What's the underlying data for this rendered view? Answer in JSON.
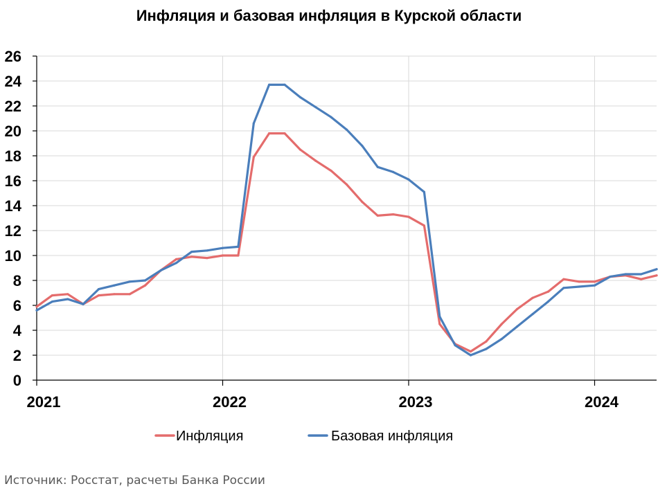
{
  "chart_data": {
    "type": "line",
    "title": "Инфляция и базовая инфляция в Курской области",
    "xlabel": "",
    "ylabel": "",
    "ylim": [
      0,
      26
    ],
    "yticks": [
      0,
      2,
      4,
      6,
      8,
      10,
      12,
      14,
      16,
      18,
      20,
      22,
      24,
      26
    ],
    "x_tick_labels": [
      "2021",
      "2022",
      "2023",
      "2024"
    ],
    "x_start": "2021-01",
    "x_end": "2024-05",
    "grid": true,
    "legend_position": "bottom",
    "x": [
      "2021-01",
      "2021-02",
      "2021-03",
      "2021-04",
      "2021-05",
      "2021-06",
      "2021-07",
      "2021-08",
      "2021-09",
      "2021-10",
      "2021-11",
      "2021-12",
      "2022-01",
      "2022-02",
      "2022-03",
      "2022-04",
      "2022-05",
      "2022-06",
      "2022-07",
      "2022-08",
      "2022-09",
      "2022-10",
      "2022-11",
      "2022-12",
      "2023-01",
      "2023-02",
      "2023-03",
      "2023-04",
      "2023-05",
      "2023-06",
      "2023-07",
      "2023-08",
      "2023-09",
      "2023-10",
      "2023-11",
      "2023-12",
      "2024-01",
      "2024-02",
      "2024-03",
      "2024-04",
      "2024-05"
    ],
    "series": [
      {
        "name": "Инфляция",
        "color": "#E46C6C",
        "values": [
          5.9,
          6.8,
          6.9,
          6.1,
          6.8,
          6.9,
          6.9,
          7.6,
          8.8,
          9.7,
          9.9,
          9.8,
          10.0,
          10.0,
          17.9,
          19.8,
          19.8,
          18.5,
          17.6,
          16.8,
          15.7,
          14.3,
          13.2,
          13.3,
          13.1,
          12.4,
          4.5,
          2.9,
          2.3,
          3.1,
          4.5,
          5.7,
          6.6,
          7.1,
          8.1,
          7.9,
          7.9,
          8.3,
          8.4,
          8.1,
          8.4
        ]
      },
      {
        "name": "Базовая инфляция",
        "color": "#4A7EBB",
        "values": [
          5.6,
          6.3,
          6.5,
          6.1,
          7.3,
          7.6,
          7.9,
          8.0,
          8.8,
          9.4,
          10.3,
          10.4,
          10.6,
          10.7,
          20.6,
          23.7,
          23.7,
          22.7,
          21.9,
          21.1,
          20.1,
          18.8,
          17.1,
          16.7,
          16.1,
          15.1,
          5.1,
          2.8,
          2.0,
          2.5,
          3.3,
          4.3,
          5.3,
          6.3,
          7.4,
          7.5,
          7.6,
          8.3,
          8.5,
          8.5,
          8.9
        ]
      }
    ]
  },
  "source": "Источник: Росстат, расчеты Банка России"
}
